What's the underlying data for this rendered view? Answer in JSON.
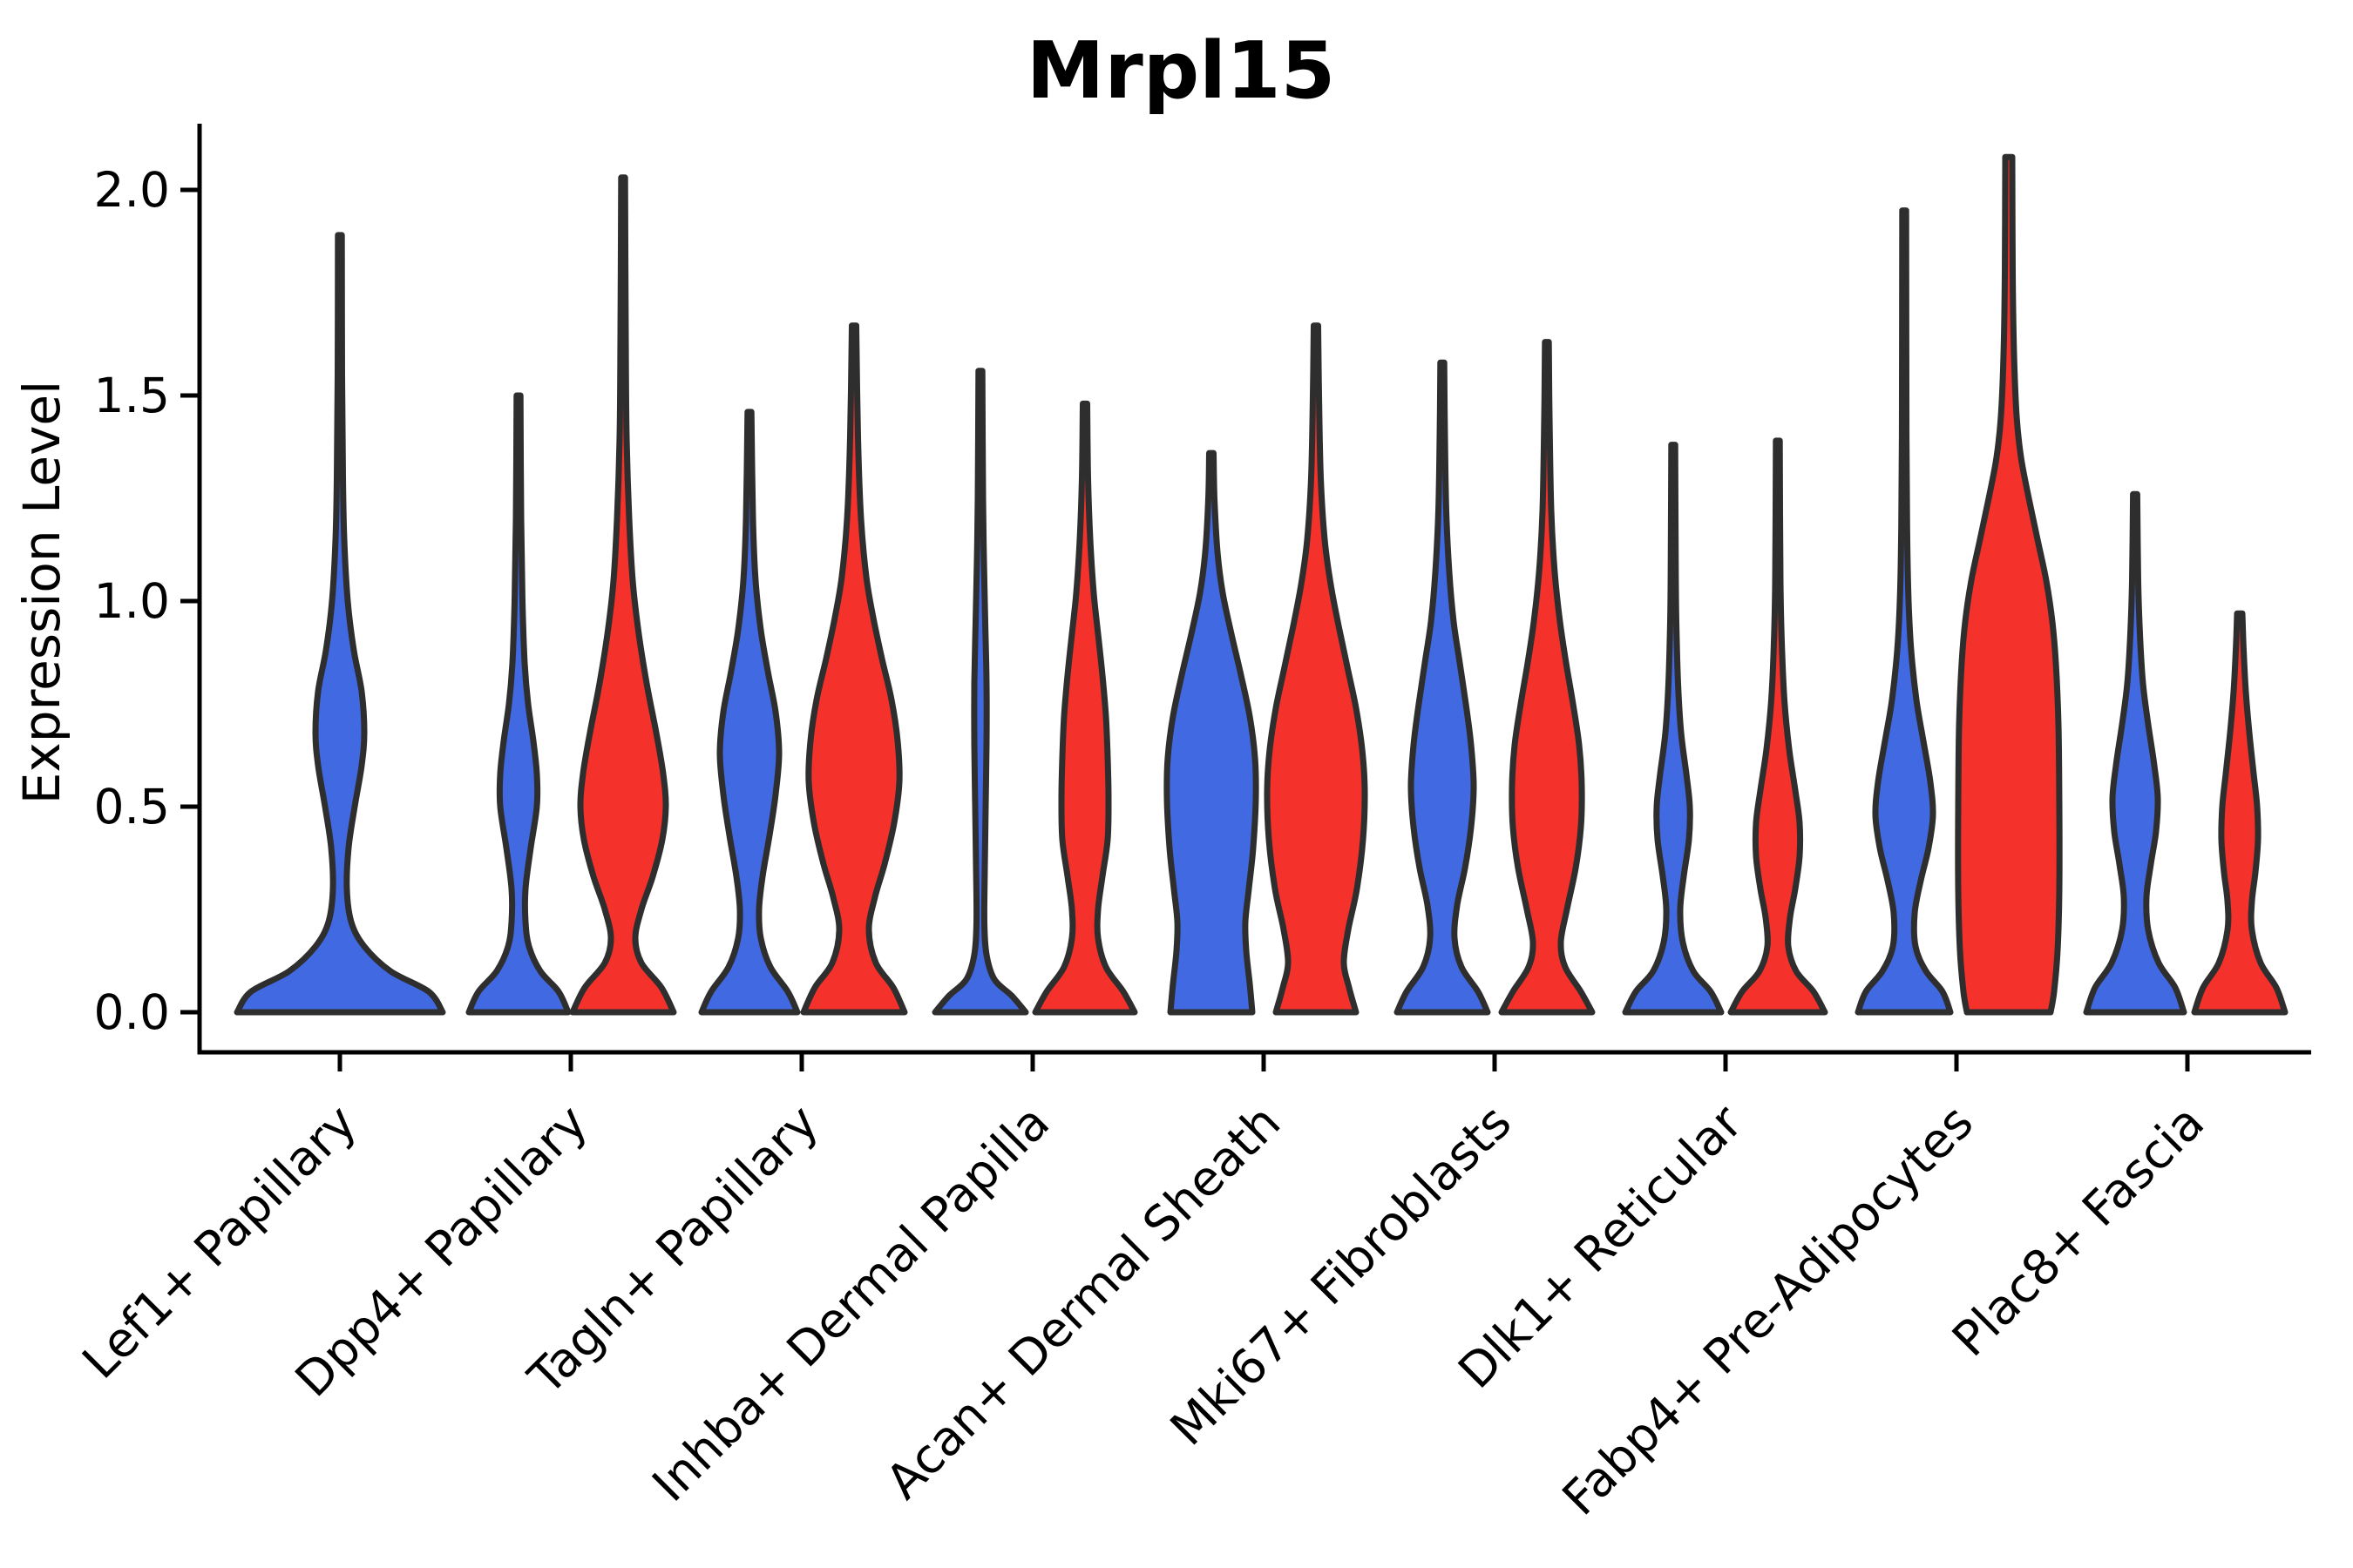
{
  "title": "Mrpl15",
  "chart_data": {
    "type": "violin",
    "title": "Mrpl15",
    "xlabel": "",
    "ylabel": "Expression Level",
    "ytick_labels": [
      "0.0",
      "0.5",
      "1.0",
      "1.5",
      "2.0"
    ],
    "ytick_values": [
      0.0,
      0.5,
      1.0,
      1.5,
      2.0
    ],
    "ylim": [
      -0.1,
      2.16
    ],
    "grid": false,
    "legend": "none",
    "categories": [
      "Lef1+ Papillary",
      "Dpp4+ Papillary",
      "Tagln+ Papillary",
      "Inhba+ Dermal Papilla",
      "Acan+ Dermal Sheath",
      "Mki67+ Fibroblasts",
      "Dlk1+ Reticular",
      "Fabp4+ Pre-Adipocytes",
      "Plac8+ Fascia"
    ],
    "colors": {
      "blue": "#4169E1",
      "red": "#F4312B",
      "outline": "#2E2E2E",
      "axis": "#000000",
      "background": "#FFFFFF"
    },
    "violins": [
      {
        "category": "Lef1+ Papillary",
        "cat_index": 0,
        "split": "blue",
        "position": "center",
        "max_expression": 1.89,
        "profile": [
          [
            0,
            118
          ],
          [
            0.05,
            102
          ],
          [
            0.1,
            58
          ],
          [
            0.16,
            28
          ],
          [
            0.22,
            13
          ],
          [
            0.3,
            8
          ],
          [
            0.4,
            10
          ],
          [
            0.5,
            17
          ],
          [
            0.6,
            25
          ],
          [
            0.68,
            28
          ],
          [
            0.78,
            25
          ],
          [
            0.88,
            16
          ],
          [
            1.0,
            9
          ],
          [
            1.15,
            5
          ],
          [
            1.3,
            3.5
          ],
          [
            1.55,
            2.5
          ],
          [
            1.89,
            2.2
          ]
        ]
      },
      {
        "category": "Dpp4+ Papillary",
        "cat_index": 1,
        "split": "blue",
        "position": "left",
        "max_expression": 1.5,
        "profile": [
          [
            0,
            57
          ],
          [
            0.05,
            46
          ],
          [
            0.1,
            25
          ],
          [
            0.16,
            12
          ],
          [
            0.22,
            8
          ],
          [
            0.3,
            8
          ],
          [
            0.4,
            14
          ],
          [
            0.5,
            21
          ],
          [
            0.58,
            21
          ],
          [
            0.66,
            17
          ],
          [
            0.75,
            11
          ],
          [
            0.85,
            7
          ],
          [
            1.0,
            4.5
          ],
          [
            1.2,
            3
          ],
          [
            1.5,
            2.2
          ]
        ]
      },
      {
        "category": "Dpp4+ Papillary",
        "cat_index": 1,
        "split": "red",
        "position": "right",
        "max_expression": 2.03,
        "profile": [
          [
            0,
            58
          ],
          [
            0.06,
            44
          ],
          [
            0.12,
            21
          ],
          [
            0.18,
            14
          ],
          [
            0.25,
            21
          ],
          [
            0.33,
            34
          ],
          [
            0.42,
            45
          ],
          [
            0.5,
            49
          ],
          [
            0.58,
            46
          ],
          [
            0.68,
            38
          ],
          [
            0.8,
            27
          ],
          [
            0.92,
            18
          ],
          [
            1.05,
            11
          ],
          [
            1.2,
            7
          ],
          [
            1.4,
            4
          ],
          [
            1.65,
            3
          ],
          [
            2.03,
            2.2
          ]
        ]
      },
      {
        "category": "Tagln+ Papillary",
        "cat_index": 2,
        "split": "blue",
        "position": "left",
        "max_expression": 1.46,
        "profile": [
          [
            0,
            55
          ],
          [
            0.05,
            44
          ],
          [
            0.11,
            24
          ],
          [
            0.18,
            13
          ],
          [
            0.25,
            11
          ],
          [
            0.33,
            15
          ],
          [
            0.43,
            23
          ],
          [
            0.53,
            30
          ],
          [
            0.63,
            34
          ],
          [
            0.73,
            30
          ],
          [
            0.83,
            21
          ],
          [
            0.93,
            13
          ],
          [
            1.05,
            7
          ],
          [
            1.2,
            4
          ],
          [
            1.46,
            2.2
          ]
        ]
      },
      {
        "category": "Tagln+ Papillary",
        "cat_index": 2,
        "split": "red",
        "position": "right",
        "max_expression": 1.67,
        "profile": [
          [
            0,
            58
          ],
          [
            0.06,
            45
          ],
          [
            0.12,
            25
          ],
          [
            0.2,
            17
          ],
          [
            0.28,
            24
          ],
          [
            0.36,
            35
          ],
          [
            0.46,
            46
          ],
          [
            0.56,
            52
          ],
          [
            0.66,
            50
          ],
          [
            0.76,
            43
          ],
          [
            0.86,
            32
          ],
          [
            0.96,
            22
          ],
          [
            1.06,
            14
          ],
          [
            1.2,
            8
          ],
          [
            1.4,
            4.5
          ],
          [
            1.67,
            2.5
          ]
        ]
      },
      {
        "category": "Inhba+ Dermal Papilla",
        "cat_index": 3,
        "split": "blue",
        "position": "left",
        "max_expression": 1.56,
        "profile": [
          [
            0,
            52
          ],
          [
            0.04,
            36
          ],
          [
            0.08,
            16
          ],
          [
            0.14,
            7
          ],
          [
            0.22,
            4.5
          ],
          [
            0.35,
            5
          ],
          [
            0.5,
            6
          ],
          [
            0.65,
            7
          ],
          [
            0.8,
            7
          ],
          [
            0.95,
            5.5
          ],
          [
            1.1,
            4
          ],
          [
            1.25,
            3
          ],
          [
            1.56,
            2.2
          ]
        ]
      },
      {
        "category": "Inhba+ Dermal Papilla",
        "cat_index": 3,
        "split": "red",
        "position": "right",
        "max_expression": 1.48,
        "profile": [
          [
            0,
            57
          ],
          [
            0.05,
            44
          ],
          [
            0.11,
            24
          ],
          [
            0.18,
            15
          ],
          [
            0.25,
            15
          ],
          [
            0.33,
            20
          ],
          [
            0.42,
            26
          ],
          [
            0.52,
            27
          ],
          [
            0.62,
            26
          ],
          [
            0.72,
            24
          ],
          [
            0.82,
            20
          ],
          [
            0.92,
            15
          ],
          [
            1.02,
            10
          ],
          [
            1.15,
            6
          ],
          [
            1.3,
            3.5
          ],
          [
            1.48,
            2.5
          ]
        ]
      },
      {
        "category": "Acan+ Dermal Sheath",
        "cat_index": 4,
        "split": "blue",
        "position": "left",
        "max_expression": 1.36,
        "profile": [
          [
            0,
            47
          ],
          [
            0.07,
            44
          ],
          [
            0.15,
            40
          ],
          [
            0.22,
            39
          ],
          [
            0.3,
            43
          ],
          [
            0.4,
            48
          ],
          [
            0.52,
            51
          ],
          [
            0.62,
            50
          ],
          [
            0.72,
            44
          ],
          [
            0.82,
            34
          ],
          [
            0.92,
            23
          ],
          [
            1.02,
            13
          ],
          [
            1.12,
            7
          ],
          [
            1.25,
            3.5
          ],
          [
            1.36,
            2.5
          ]
        ]
      },
      {
        "category": "Acan+ Dermal Sheath",
        "cat_index": 4,
        "split": "red",
        "position": "right",
        "max_expression": 1.67,
        "profile": [
          [
            0,
            46
          ],
          [
            0.06,
            38
          ],
          [
            0.12,
            32
          ],
          [
            0.2,
            37
          ],
          [
            0.3,
            47
          ],
          [
            0.42,
            54
          ],
          [
            0.54,
            56
          ],
          [
            0.64,
            53
          ],
          [
            0.74,
            46
          ],
          [
            0.84,
            36
          ],
          [
            0.94,
            26
          ],
          [
            1.04,
            17
          ],
          [
            1.15,
            10
          ],
          [
            1.3,
            5.5
          ],
          [
            1.5,
            3.5
          ],
          [
            1.67,
            2.5
          ]
        ]
      },
      {
        "category": "Mki67+ Fibroblasts",
        "cat_index": 5,
        "split": "blue",
        "position": "left",
        "max_expression": 1.58,
        "profile": [
          [
            0,
            52
          ],
          [
            0.05,
            41
          ],
          [
            0.11,
            22
          ],
          [
            0.18,
            14
          ],
          [
            0.26,
            17
          ],
          [
            0.35,
            26
          ],
          [
            0.45,
            33
          ],
          [
            0.55,
            36
          ],
          [
            0.65,
            33
          ],
          [
            0.75,
            27
          ],
          [
            0.85,
            20
          ],
          [
            0.95,
            13
          ],
          [
            1.07,
            8
          ],
          [
            1.22,
            4.5
          ],
          [
            1.4,
            3
          ],
          [
            1.58,
            2.2
          ]
        ]
      },
      {
        "category": "Mki67+ Fibroblasts",
        "cat_index": 5,
        "split": "red",
        "position": "right",
        "max_expression": 1.63,
        "profile": [
          [
            0,
            52
          ],
          [
            0.05,
            39
          ],
          [
            0.11,
            21
          ],
          [
            0.17,
            16
          ],
          [
            0.25,
            23
          ],
          [
            0.35,
            33
          ],
          [
            0.45,
            39
          ],
          [
            0.55,
            40
          ],
          [
            0.65,
            37
          ],
          [
            0.75,
            30
          ],
          [
            0.85,
            22
          ],
          [
            0.95,
            15
          ],
          [
            1.07,
            9
          ],
          [
            1.22,
            5
          ],
          [
            1.45,
            3
          ],
          [
            1.63,
            2.2
          ]
        ]
      },
      {
        "category": "Dlk1+ Reticular",
        "cat_index": 6,
        "split": "blue",
        "position": "left",
        "max_expression": 1.38,
        "profile": [
          [
            0,
            55
          ],
          [
            0.05,
            43
          ],
          [
            0.1,
            23
          ],
          [
            0.17,
            11
          ],
          [
            0.25,
            8
          ],
          [
            0.33,
            12
          ],
          [
            0.42,
            18
          ],
          [
            0.5,
            19
          ],
          [
            0.58,
            15
          ],
          [
            0.68,
            9
          ],
          [
            0.8,
            5.5
          ],
          [
            0.95,
            3.5
          ],
          [
            1.1,
            2.8
          ],
          [
            1.38,
            2.2
          ]
        ]
      },
      {
        "category": "Dlk1+ Reticular",
        "cat_index": 6,
        "split": "red",
        "position": "right",
        "max_expression": 1.39,
        "profile": [
          [
            0,
            54
          ],
          [
            0.05,
            41
          ],
          [
            0.1,
            21
          ],
          [
            0.16,
            12
          ],
          [
            0.23,
            14
          ],
          [
            0.3,
            20
          ],
          [
            0.38,
            25
          ],
          [
            0.46,
            25
          ],
          [
            0.54,
            20
          ],
          [
            0.64,
            13
          ],
          [
            0.76,
            7.5
          ],
          [
            0.9,
            4.5
          ],
          [
            1.05,
            3
          ],
          [
            1.39,
            2.2
          ]
        ]
      },
      {
        "category": "Fabp4+ Pre-Adipocytes",
        "cat_index": 7,
        "split": "blue",
        "position": "left",
        "max_expression": 1.95,
        "profile": [
          [
            0,
            53
          ],
          [
            0.05,
            44
          ],
          [
            0.1,
            25
          ],
          [
            0.16,
            13
          ],
          [
            0.24,
            12
          ],
          [
            0.32,
            19
          ],
          [
            0.4,
            28
          ],
          [
            0.48,
            33
          ],
          [
            0.56,
            30
          ],
          [
            0.66,
            22
          ],
          [
            0.76,
            14
          ],
          [
            0.88,
            8
          ],
          [
            1.0,
            5
          ],
          [
            1.15,
            3.5
          ],
          [
            1.4,
            2.6
          ],
          [
            1.95,
            2.2
          ]
        ]
      },
      {
        "category": "Fabp4+ Pre-Adipocytes",
        "cat_index": 7,
        "split": "red",
        "position": "right",
        "max_expression": 2.08,
        "profile": [
          [
            0,
            48
          ],
          [
            0.05,
            52
          ],
          [
            0.15,
            56
          ],
          [
            0.3,
            58
          ],
          [
            0.5,
            58
          ],
          [
            0.7,
            57
          ],
          [
            0.85,
            54
          ],
          [
            0.95,
            50
          ],
          [
            1.05,
            43
          ],
          [
            1.15,
            33
          ],
          [
            1.25,
            23
          ],
          [
            1.35,
            14
          ],
          [
            1.45,
            9
          ],
          [
            1.6,
            6
          ],
          [
            1.8,
            4.5
          ],
          [
            2.08,
            4
          ]
        ]
      },
      {
        "category": "Plac8+ Fascia",
        "cat_index": 8,
        "split": "blue",
        "position": "left",
        "max_expression": 1.26,
        "profile": [
          [
            0,
            56
          ],
          [
            0.06,
            46
          ],
          [
            0.12,
            27
          ],
          [
            0.2,
            15
          ],
          [
            0.28,
            13
          ],
          [
            0.36,
            18
          ],
          [
            0.44,
            24
          ],
          [
            0.52,
            26
          ],
          [
            0.6,
            22
          ],
          [
            0.7,
            15
          ],
          [
            0.8,
            9
          ],
          [
            0.92,
            5.5
          ],
          [
            1.05,
            3.5
          ],
          [
            1.26,
            2.4
          ]
        ]
      },
      {
        "category": "Plac8+ Fascia",
        "cat_index": 8,
        "split": "red",
        "position": "right",
        "max_expression": 0.97,
        "profile": [
          [
            0,
            52
          ],
          [
            0.06,
            42
          ],
          [
            0.12,
            24
          ],
          [
            0.2,
            14
          ],
          [
            0.27,
            14
          ],
          [
            0.34,
            18
          ],
          [
            0.42,
            21
          ],
          [
            0.5,
            20
          ],
          [
            0.58,
            16
          ],
          [
            0.68,
            11
          ],
          [
            0.78,
            7
          ],
          [
            0.88,
            4.5
          ],
          [
            0.97,
            3
          ]
        ]
      }
    ]
  }
}
